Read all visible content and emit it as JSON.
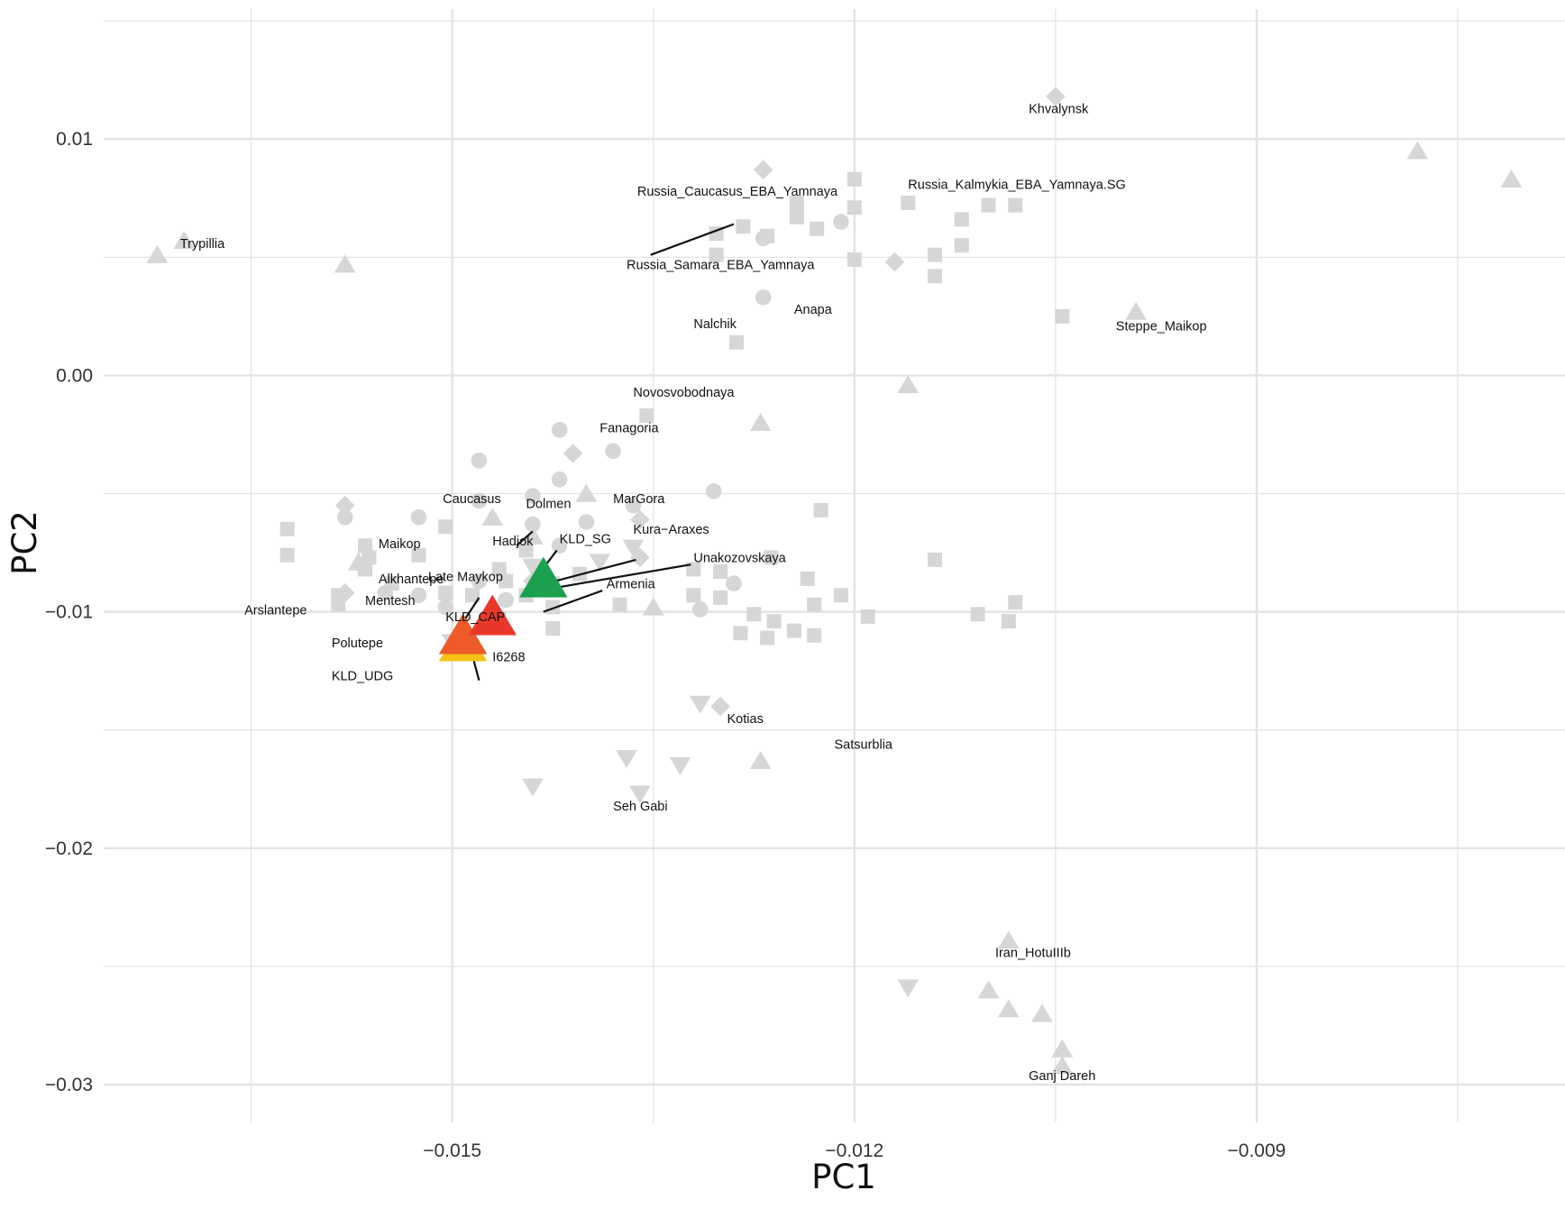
{
  "chart_data": {
    "type": "scatter",
    "title": "",
    "xlabel": "PC1",
    "ylabel": "PC2",
    "xlim": [
      -0.0176,
      -0.0067
    ],
    "ylim": [
      -0.0316,
      0.0155
    ],
    "x_ticks": [
      -0.015,
      -0.012,
      -0.009
    ],
    "x_tick_labels": [
      "−0.015",
      "−0.012",
      "−0.009"
    ],
    "y_ticks": [
      0.01,
      0.0,
      -0.01,
      -0.02,
      -0.03
    ],
    "y_tick_labels": [
      "0.01",
      "0.00",
      "−0.01",
      "−0.02",
      "−0.03"
    ],
    "grid": true,
    "colors": {
      "background_points": "#d6d6d6",
      "grid": "#e3e3e3",
      "KLD_SG": "#1aa04f",
      "KLD_CAP": "#e8382c",
      "KLD_UDG": "#ef5a2a",
      "I6268": "#f3c318"
    },
    "background_points": [
      {
        "shape": "square",
        "x": -0.01623,
        "y": -0.0065
      },
      {
        "shape": "square",
        "x": -0.01623,
        "y": -0.0076
      },
      {
        "shape": "square",
        "x": -0.01585,
        "y": -0.0093
      },
      {
        "shape": "square",
        "x": -0.01585,
        "y": -0.0097
      },
      {
        "shape": "square",
        "x": -0.01565,
        "y": -0.0072
      },
      {
        "shape": "square",
        "x": -0.01565,
        "y": -0.0082
      },
      {
        "shape": "square",
        "x": -0.01562,
        "y": -0.0077
      },
      {
        "shape": "square",
        "x": -0.01545,
        "y": -0.0088
      },
      {
        "shape": "square",
        "x": -0.01525,
        "y": -0.0076
      },
      {
        "shape": "square",
        "x": -0.01505,
        "y": -0.0064
      },
      {
        "shape": "square",
        "x": -0.01505,
        "y": -0.0092
      },
      {
        "shape": "square",
        "x": -0.01485,
        "y": -0.0093
      },
      {
        "shape": "square",
        "x": -0.01465,
        "y": -0.0082
      },
      {
        "shape": "square",
        "x": -0.0146,
        "y": -0.0087
      },
      {
        "shape": "square",
        "x": -0.01445,
        "y": -0.0074
      },
      {
        "shape": "square",
        "x": -0.01445,
        "y": -0.0093
      },
      {
        "shape": "square",
        "x": -0.01425,
        "y": -0.0088
      },
      {
        "shape": "square",
        "x": -0.01425,
        "y": -0.0098
      },
      {
        "shape": "square",
        "x": -0.01405,
        "y": -0.0084
      },
      {
        "shape": "square",
        "x": -0.0132,
        "y": -0.0082
      },
      {
        "shape": "square",
        "x": -0.0132,
        "y": -0.0093
      },
      {
        "shape": "square",
        "x": -0.013,
        "y": -0.0083
      },
      {
        "shape": "square",
        "x": -0.01262,
        "y": -0.0077
      },
      {
        "shape": "square",
        "x": -0.01235,
        "y": -0.0086
      },
      {
        "shape": "square",
        "x": -0.01225,
        "y": -0.0057
      },
      {
        "shape": "square",
        "x": -0.0121,
        "y": -0.0093
      },
      {
        "shape": "square",
        "x": -0.0114,
        "y": -0.0078
      },
      {
        "shape": "square",
        "x": -0.01108,
        "y": -0.0101
      },
      {
        "shape": "square",
        "x": -0.013,
        "y": -0.0094
      },
      {
        "shape": "square",
        "x": -0.01275,
        "y": -0.0101
      },
      {
        "shape": "square",
        "x": -0.0126,
        "y": -0.0104
      },
      {
        "shape": "square",
        "x": -0.01245,
        "y": -0.0108
      },
      {
        "shape": "square",
        "x": -0.01285,
        "y": -0.0109
      },
      {
        "shape": "square",
        "x": -0.01265,
        "y": -0.0111
      },
      {
        "shape": "square",
        "x": -0.0123,
        "y": -0.011
      },
      {
        "shape": "square",
        "x": -0.0123,
        "y": -0.0097
      },
      {
        "shape": "square",
        "x": -0.0119,
        "y": -0.0102
      },
      {
        "shape": "square",
        "x": -0.0108,
        "y": -0.0096
      },
      {
        "shape": "square",
        "x": -0.01085,
        "y": -0.0104
      },
      {
        "shape": "square",
        "x": -0.01465,
        "y": -0.0103
      },
      {
        "shape": "square",
        "x": -0.01425,
        "y": -0.0107
      },
      {
        "shape": "square",
        "x": -0.01375,
        "y": -0.0097
      },
      {
        "shape": "square",
        "x": -0.01355,
        "y": -0.0017
      },
      {
        "shape": "square",
        "x": -0.01303,
        "y": 0.006
      },
      {
        "shape": "square",
        "x": -0.01303,
        "y": 0.0051
      },
      {
        "shape": "square",
        "x": -0.01283,
        "y": 0.0063
      },
      {
        "shape": "square",
        "x": -0.01265,
        "y": 0.0059
      },
      {
        "shape": "square",
        "x": -0.01243,
        "y": 0.0067
      },
      {
        "shape": "square",
        "x": -0.01228,
        "y": 0.0062
      },
      {
        "shape": "square",
        "x": -0.012,
        "y": 0.0083
      },
      {
        "shape": "square",
        "x": -0.012,
        "y": 0.0071
      },
      {
        "shape": "square",
        "x": -0.012,
        "y": 0.0049
      },
      {
        "shape": "square",
        "x": -0.01243,
        "y": 0.0073
      },
      {
        "shape": "square",
        "x": -0.0116,
        "y": 0.0073
      },
      {
        "shape": "square",
        "x": -0.0114,
        "y": 0.0051
      },
      {
        "shape": "square",
        "x": -0.0114,
        "y": 0.0042
      },
      {
        "shape": "square",
        "x": -0.0112,
        "y": 0.0066
      },
      {
        "shape": "square",
        "x": -0.0112,
        "y": 0.0055
      },
      {
        "shape": "square",
        "x": -0.011,
        "y": 0.0072
      },
      {
        "shape": "square",
        "x": -0.0108,
        "y": 0.0072
      },
      {
        "shape": "square",
        "x": -0.01045,
        "y": 0.0025
      },
      {
        "shape": "square",
        "x": -0.01288,
        "y": 0.0014
      },
      {
        "shape": "circle",
        "x": -0.01525,
        "y": -0.006
      },
      {
        "shape": "circle",
        "x": -0.01525,
        "y": -0.0093
      },
      {
        "shape": "circle",
        "x": -0.0148,
        "y": -0.0036
      },
      {
        "shape": "circle",
        "x": -0.0148,
        "y": -0.0053
      },
      {
        "shape": "circle",
        "x": -0.0144,
        "y": -0.0051
      },
      {
        "shape": "circle",
        "x": -0.0142,
        "y": -0.0023
      },
      {
        "shape": "circle",
        "x": -0.0142,
        "y": -0.0044
      },
      {
        "shape": "circle",
        "x": -0.014,
        "y": -0.0062
      },
      {
        "shape": "circle",
        "x": -0.0138,
        "y": -0.0032
      },
      {
        "shape": "circle",
        "x": -0.0144,
        "y": -0.0063
      },
      {
        "shape": "circle",
        "x": -0.0142,
        "y": -0.0072
      },
      {
        "shape": "circle",
        "x": -0.0146,
        "y": -0.0095
      },
      {
        "shape": "circle",
        "x": -0.0148,
        "y": -0.0087
      },
      {
        "shape": "circle",
        "x": -0.01505,
        "y": -0.0098
      },
      {
        "shape": "circle",
        "x": -0.01365,
        "y": -0.0055
      },
      {
        "shape": "circle",
        "x": -0.01305,
        "y": -0.0049
      },
      {
        "shape": "circle",
        "x": -0.01315,
        "y": -0.0099
      },
      {
        "shape": "circle",
        "x": -0.0129,
        "y": -0.0088
      },
      {
        "shape": "circle",
        "x": -0.01268,
        "y": 0.0058
      },
      {
        "shape": "circle",
        "x": -0.01268,
        "y": 0.0033
      },
      {
        "shape": "circle",
        "x": -0.0121,
        "y": 0.0065
      },
      {
        "shape": "circle",
        "x": -0.0158,
        "y": -0.006
      },
      {
        "shape": "circle",
        "x": -0.0155,
        "y": -0.0092
      },
      {
        "shape": "diamond",
        "x": -0.0158,
        "y": -0.0055
      },
      {
        "shape": "diamond",
        "x": -0.0158,
        "y": -0.0092
      },
      {
        "shape": "diamond",
        "x": -0.0141,
        "y": -0.0033
      },
      {
        "shape": "diamond",
        "x": -0.0136,
        "y": -0.0061
      },
      {
        "shape": "diamond",
        "x": -0.0136,
        "y": -0.0077
      },
      {
        "shape": "diamond",
        "x": -0.0144,
        "y": -0.0087
      },
      {
        "shape": "diamond",
        "x": -0.013,
        "y": -0.014
      },
      {
        "shape": "diamond",
        "x": -0.01268,
        "y": 0.0087
      },
      {
        "shape": "diamond",
        "x": -0.0117,
        "y": 0.0048
      },
      {
        "shape": "diamond",
        "x": -0.0105,
        "y": 0.0118
      },
      {
        "shape": "triangle-up",
        "x": -0.0172,
        "y": 0.0051
      },
      {
        "shape": "triangle-up",
        "x": -0.017,
        "y": 0.0057
      },
      {
        "shape": "triangle-up",
        "x": -0.0158,
        "y": 0.0047
      },
      {
        "shape": "triangle-up",
        "x": -0.0147,
        "y": -0.006
      },
      {
        "shape": "triangle-up",
        "x": -0.014,
        "y": -0.005
      },
      {
        "shape": "triangle-up",
        "x": -0.0144,
        "y": -0.0068
      },
      {
        "shape": "triangle-up",
        "x": -0.0135,
        "y": -0.0098
      },
      {
        "shape": "triangle-up",
        "x": -0.0157,
        "y": -0.0079
      },
      {
        "shape": "triangle-up",
        "x": -0.0127,
        "y": -0.002
      },
      {
        "shape": "triangle-up",
        "x": -0.0116,
        "y": -0.0004
      },
      {
        "shape": "triangle-up",
        "x": -0.0127,
        "y": -0.0163
      },
      {
        "shape": "triangle-up",
        "x": -0.0099,
        "y": 0.0027
      },
      {
        "shape": "triangle-up",
        "x": -0.0078,
        "y": 0.0095
      },
      {
        "shape": "triangle-up",
        "x": -0.0071,
        "y": 0.0083
      },
      {
        "shape": "triangle-up",
        "x": -0.01085,
        "y": -0.0239
      },
      {
        "shape": "triangle-up",
        "x": -0.011,
        "y": -0.026
      },
      {
        "shape": "triangle-up",
        "x": -0.01085,
        "y": -0.0268
      },
      {
        "shape": "triangle-up",
        "x": -0.0106,
        "y": -0.027
      },
      {
        "shape": "triangle-up",
        "x": -0.01045,
        "y": -0.0285
      },
      {
        "shape": "triangle-up",
        "x": -0.01045,
        "y": -0.0292
      },
      {
        "shape": "triangle-down",
        "x": -0.015,
        "y": -0.0113
      },
      {
        "shape": "triangle-down",
        "x": -0.0144,
        "y": -0.0081
      },
      {
        "shape": "triangle-down",
        "x": -0.0139,
        "y": -0.0079
      },
      {
        "shape": "triangle-down",
        "x": -0.01365,
        "y": -0.0073
      },
      {
        "shape": "triangle-down",
        "x": -0.01315,
        "y": -0.0139
      },
      {
        "shape": "triangle-down",
        "x": -0.0133,
        "y": -0.0165
      },
      {
        "shape": "triangle-down",
        "x": -0.0136,
        "y": -0.0177
      },
      {
        "shape": "triangle-down",
        "x": -0.0144,
        "y": -0.0174
      },
      {
        "shape": "triangle-down",
        "x": -0.0137,
        "y": -0.0162
      },
      {
        "shape": "triangle-down",
        "x": -0.0116,
        "y": -0.0259
      }
    ],
    "labels": [
      {
        "text": "Khvalynsk",
        "x": -0.0107,
        "y": 0.0111
      },
      {
        "text": "Russia_Kalmykia_EBA_Yamnaya.SG",
        "x": -0.0116,
        "y": 0.0079
      },
      {
        "text": "Russia_Caucasus_EBA_Yamnaya",
        "x": -0.01362,
        "y": 0.0076
      },
      {
        "text": "Russia_Samara_EBA_Yamnaya",
        "x": -0.0137,
        "y": 0.0045
      },
      {
        "text": "Trypillia",
        "x": -0.01703,
        "y": 0.0054
      },
      {
        "text": "Anapa",
        "x": -0.01245,
        "y": 0.0026
      },
      {
        "text": "Nalchik",
        "x": -0.0132,
        "y": 0.002
      },
      {
        "text": "Steppe_Maikop",
        "x": -0.01005,
        "y": 0.0019
      },
      {
        "text": "Novosvobodnaya",
        "x": -0.01365,
        "y": -0.0009
      },
      {
        "text": "Fanagoria",
        "x": -0.0139,
        "y": -0.0024
      },
      {
        "text": "Caucasus",
        "x": -0.01507,
        "y": -0.0054
      },
      {
        "text": "Dolmen",
        "x": -0.01445,
        "y": -0.0056
      },
      {
        "text": "MarGora",
        "x": -0.0138,
        "y": -0.0054
      },
      {
        "text": "Maikop",
        "x": -0.01555,
        "y": -0.0073
      },
      {
        "text": "Hadjok",
        "x": -0.0147,
        "y": -0.0072
      },
      {
        "text": "KLD_SG",
        "x": -0.0142,
        "y": -0.0071
      },
      {
        "text": "Kura−Araxes",
        "x": -0.01365,
        "y": -0.0067
      },
      {
        "text": "Unakozovskaya",
        "x": -0.0132,
        "y": -0.0079
      },
      {
        "text": "Late Maykop",
        "x": -0.01518,
        "y": -0.0087
      },
      {
        "text": "Alkhantepe",
        "x": -0.01555,
        "y": -0.0088
      },
      {
        "text": "Armenia",
        "x": -0.01385,
        "y": -0.009
      },
      {
        "text": "Arslantepe",
        "x": -0.01655,
        "y": -0.0101
      },
      {
        "text": "Mentesh",
        "x": -0.01565,
        "y": -0.0097
      },
      {
        "text": "KLD_CAP",
        "x": -0.01505,
        "y": -0.0104
      },
      {
        "text": "Polutepe",
        "x": -0.0159,
        "y": -0.0115
      },
      {
        "text": "I6268",
        "x": -0.0147,
        "y": -0.0121
      },
      {
        "text": "KLD_UDG",
        "x": -0.0159,
        "y": -0.0129
      },
      {
        "text": "Kotias",
        "x": -0.01295,
        "y": -0.0147
      },
      {
        "text": "Satsurblia",
        "x": -0.01215,
        "y": -0.0158
      },
      {
        "text": "Seh Gabi",
        "x": -0.0138,
        "y": -0.0184
      },
      {
        "text": "Iran_HotuIIIb",
        "x": -0.01095,
        "y": -0.0246
      },
      {
        "text": "Ganj Dareh",
        "x": -0.0107,
        "y": -0.0298
      }
    ],
    "leaders": [
      {
        "from": [
          -0.01352,
          0.0051
        ],
        "to": [
          -0.0129,
          0.0064
        ]
      },
      {
        "from": [
          -0.01452,
          -0.0072
        ],
        "to": [
          -0.0144,
          -0.0066
        ]
      },
      {
        "from": [
          -0.01422,
          -0.0074
        ],
        "to": [
          -0.01438,
          -0.0086
        ]
      },
      {
        "from": [
          -0.01363,
          -0.0078
        ],
        "to": [
          -0.0143,
          -0.0088
        ]
      },
      {
        "from": [
          -0.01322,
          -0.008
        ],
        "to": [
          -0.01425,
          -0.009
        ]
      },
      {
        "from": [
          -0.01388,
          -0.0091
        ],
        "to": [
          -0.01432,
          -0.01
        ]
      },
      {
        "from": [
          -0.01503,
          -0.0114
        ],
        "to": [
          -0.0148,
          -0.0094
        ]
      },
      {
        "from": [
          -0.0148,
          -0.0129
        ],
        "to": [
          -0.01488,
          -0.0112
        ]
      }
    ],
    "highlight_points": [
      {
        "name": "I6268",
        "shape": "triangle-up",
        "x": -0.01492,
        "y": -0.0113,
        "color": "#f3c318"
      },
      {
        "name": "KLD_UDG",
        "shape": "triangle-up",
        "x": -0.01492,
        "y": -0.011,
        "color": "#ef5a2a"
      },
      {
        "name": "KLD_CAP",
        "shape": "triangle-up",
        "x": -0.0147,
        "y": -0.0102,
        "color": "#e8382c"
      },
      {
        "name": "KLD_SG",
        "shape": "triangle-up",
        "x": -0.01432,
        "y": -0.0086,
        "color": "#1aa04f"
      }
    ]
  }
}
